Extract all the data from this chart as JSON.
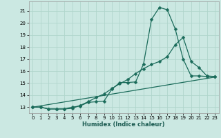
{
  "xlabel": "Humidex (Indice chaleur)",
  "bg_color": "#cbe8e2",
  "grid_color": "#b0d5cc",
  "line_color": "#1a6b5a",
  "xlim": [
    -0.5,
    23.5
  ],
  "ylim": [
    12.5,
    21.8
  ],
  "yticks": [
    13,
    14,
    15,
    16,
    17,
    18,
    19,
    20,
    21
  ],
  "xticks": [
    0,
    1,
    2,
    3,
    4,
    5,
    6,
    7,
    8,
    9,
    10,
    11,
    12,
    13,
    14,
    15,
    16,
    17,
    18,
    19,
    20,
    21,
    22,
    23
  ],
  "curve1_x": [
    0,
    1,
    2,
    3,
    4,
    5,
    6,
    7,
    8,
    9,
    10,
    11,
    12,
    13,
    14,
    15,
    16,
    17,
    18,
    19,
    20,
    21,
    22,
    23
  ],
  "curve1_y": [
    13.0,
    13.0,
    12.85,
    12.85,
    12.85,
    13.0,
    13.1,
    13.4,
    13.45,
    13.5,
    14.5,
    15.05,
    15.05,
    15.1,
    16.6,
    20.3,
    21.3,
    21.1,
    19.5,
    17.0,
    15.6,
    15.6,
    15.55,
    15.55
  ],
  "curve2_x": [
    0,
    1,
    2,
    3,
    4,
    5,
    6,
    7,
    8,
    9,
    10,
    11,
    12,
    13,
    14,
    15,
    16,
    17,
    18,
    19,
    20,
    21,
    22,
    23
  ],
  "curve2_y": [
    13.0,
    13.0,
    12.85,
    12.85,
    12.85,
    12.9,
    13.15,
    13.45,
    13.8,
    14.1,
    14.55,
    14.95,
    15.3,
    15.8,
    16.2,
    16.55,
    16.8,
    17.2,
    18.2,
    18.8,
    16.8,
    16.3,
    15.6,
    15.55
  ],
  "curve3_x": [
    0,
    23
  ],
  "curve3_y": [
    13.0,
    15.5
  ],
  "marker_size": 2.5
}
